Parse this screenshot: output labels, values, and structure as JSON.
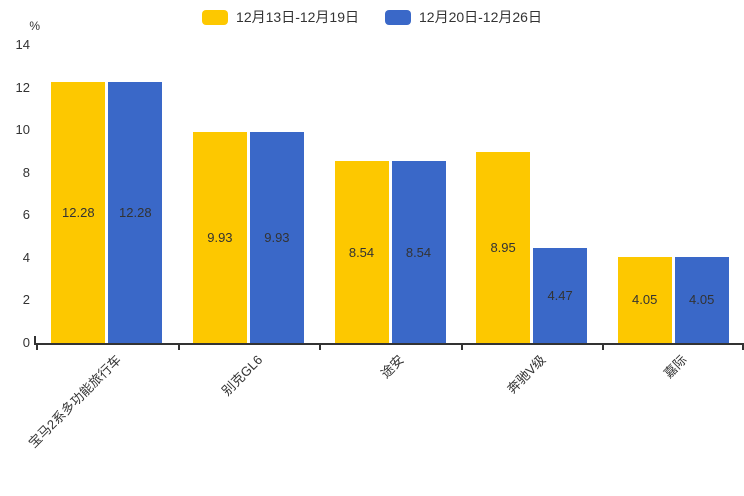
{
  "chart_data": {
    "type": "bar",
    "categories": [
      "宝马2系多功能旅行车",
      "别克GL6",
      "途安",
      "奔驰V级",
      "嘉际"
    ],
    "series": [
      {
        "name": "12月13日-12月19日",
        "color": "#FDC800",
        "values": [
          12.28,
          9.93,
          8.54,
          8.95,
          4.05
        ]
      },
      {
        "name": "12月20日-12月26日",
        "color": "#3A68C8",
        "values": [
          12.28,
          9.93,
          8.54,
          4.47,
          4.05
        ]
      }
    ],
    "value_labels": [
      [
        "12.28",
        "9.93",
        "8.54",
        "8.95",
        "4.05"
      ],
      [
        "12.28",
        "9.93",
        "8.54",
        "4.47",
        "4.05"
      ]
    ],
    "title": "",
    "xlabel": "",
    "ylabel": "%",
    "ylim": [
      0,
      14
    ],
    "yticks": [
      0,
      2,
      4,
      6,
      8,
      10,
      12,
      14
    ],
    "grid": false,
    "legend_position": "top",
    "value_label_position": "inside-center",
    "axis_color": "#333333",
    "text_color": "#333333",
    "background_color": "#ffffff"
  }
}
